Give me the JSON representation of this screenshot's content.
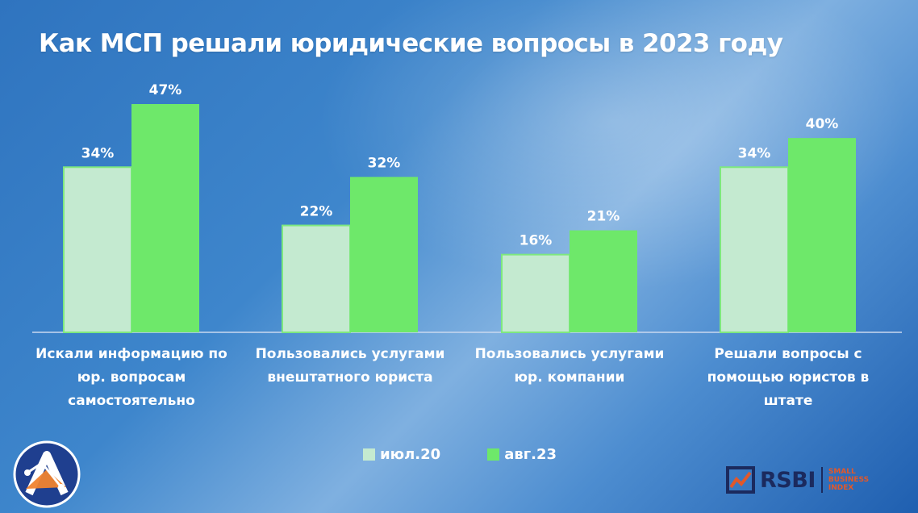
{
  "title": "Как МСП решали юридические вопросы в 2023 году",
  "colors": {
    "series1": "#c4ead0",
    "series1_border": "#7ee87e",
    "series2": "#6ee86a",
    "axis": "#c9d8ef"
  },
  "chart_data": {
    "type": "bar",
    "title": "Как МСП решали юридические вопросы в 2023 году",
    "xlabel": "",
    "ylabel": "",
    "ylim": [
      0,
      50
    ],
    "grid": false,
    "legend_position": "bottom",
    "categories": [
      [
        "Искали информацию по",
        "юр. вопросам",
        "самостоятельно"
      ],
      [
        "Пользовались услугами",
        "внештатного юриста"
      ],
      [
        "Пользовались услугами",
        "юр. компании"
      ],
      [
        "Решали вопросы с",
        "помощью юристов в",
        "штате"
      ]
    ],
    "series": [
      {
        "name": "июл.20",
        "values": [
          34,
          22,
          16,
          34
        ],
        "labels": [
          "34%",
          "22%",
          "16%",
          "34%"
        ]
      },
      {
        "name": "авг.23",
        "values": [
          47,
          32,
          21,
          40
        ],
        "labels": [
          "47%",
          "32%",
          "21%",
          "40%"
        ]
      }
    ]
  },
  "logos": {
    "left": "A",
    "right_main": "RSBI",
    "right_sub": [
      "SMALL",
      "BUSINESS",
      "INDEX"
    ]
  }
}
